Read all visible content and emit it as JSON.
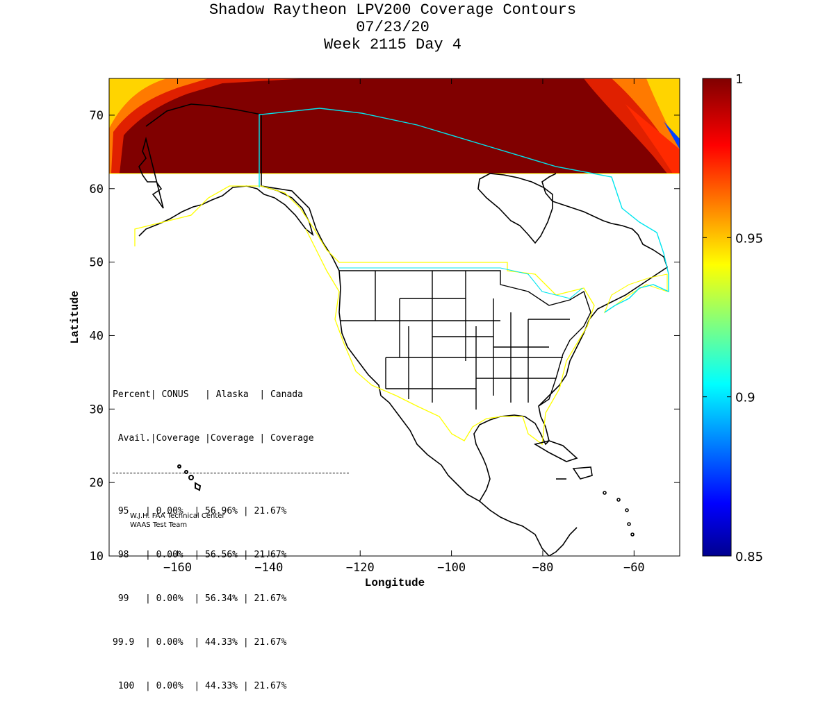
{
  "title": {
    "line1": "Shadow Raytheon LPV200 Coverage Contours",
    "line2": "07/23/20",
    "line3": "Week 2115 Day 4"
  },
  "axes": {
    "xlabel": "Longitude",
    "ylabel": "Latitude",
    "xlim": [
      -175,
      -50
    ],
    "ylim": [
      10,
      75
    ],
    "xticks": [
      -160,
      -140,
      -120,
      -100,
      -80,
      -60
    ],
    "yticks": [
      10,
      20,
      30,
      40,
      50,
      60,
      70
    ]
  },
  "colorbar": {
    "range": [
      0.85,
      1
    ],
    "ticks": [
      "1",
      "0.95",
      "0.9",
      "0.85"
    ],
    "colormap": "jet"
  },
  "coverage_table": {
    "header1": "Percent| CONUS   | Alaska  | Canada",
    "header2": " Avail.|Coverage |Coverage | Coverage",
    "rows": [
      " 95   | 0.00%  | 56.96% | 21.67%",
      " 98   | 0.00%  | 56.56% | 21.67%",
      " 99   | 0.00%  | 56.34% | 21.67%",
      "99.9  | 0.00%  | 44.33% | 21.67%",
      " 100  | 0.00%  | 44.33% | 21.67%"
    ]
  },
  "credit": {
    "line1": "W.J.H. FAA Technical Center",
    "line2": "WAAS Test Team"
  },
  "colors": {
    "coverage_dark": "#800000",
    "coverage_red": "#d41000",
    "coverage_orange": "#ff7a00",
    "coverage_yellow": "#ffd400",
    "service_boundary_yellow": "#ffff00",
    "alaska_canada_boundary": "#00e5ee"
  }
}
